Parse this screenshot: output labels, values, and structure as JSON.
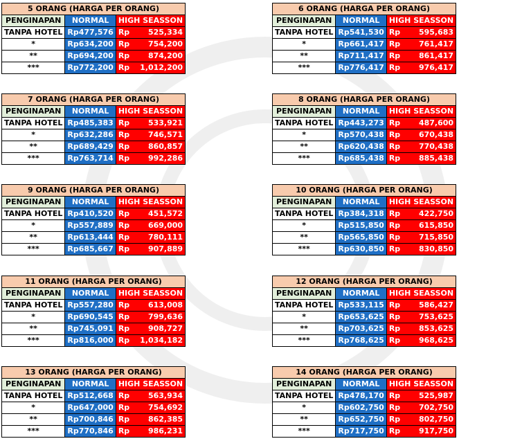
{
  "headers": {
    "accommodation": "PENGINAPAN",
    "normal": "NORMAL",
    "high": "HIGH SEASSON"
  },
  "currency": "Rp",
  "colors": {
    "title_bg": "#f8cbad",
    "label_header_bg": "#e2efda",
    "normal_bg": "#1f6fc5",
    "high_bg": "#ff0000"
  },
  "tables": [
    {
      "title": "5 ORANG (HARGA PER ORANG)",
      "rows": [
        {
          "label": "TANPA HOTEL",
          "normal": "477,576",
          "high": "525,334"
        },
        {
          "label": "*",
          "normal": "634,200",
          "high": "754,200"
        },
        {
          "label": "**",
          "normal": "694,200",
          "high": "874,200"
        },
        {
          "label": "***",
          "normal": "772,200",
          "high": "1,012,200"
        }
      ]
    },
    {
      "title": "6 ORANG (HARGA PER ORANG)",
      "rows": [
        {
          "label": "TANPA HOTEL",
          "normal": "541,530",
          "high": "595,683"
        },
        {
          "label": "*",
          "normal": "661,417",
          "high": "761,417"
        },
        {
          "label": "**",
          "normal": "711,417",
          "high": "861,417"
        },
        {
          "label": "***",
          "normal": "776,417",
          "high": "976,417"
        }
      ]
    },
    {
      "title": "7 ORANG (HARGA PER ORANG)",
      "rows": [
        {
          "label": "TANPA HOTEL",
          "normal": "485,383",
          "high": "533,921"
        },
        {
          "label": "*",
          "normal": "632,286",
          "high": "746,571"
        },
        {
          "label": "**",
          "normal": "689,429",
          "high": "860,857"
        },
        {
          "label": "***",
          "normal": "763,714",
          "high": "992,286"
        }
      ]
    },
    {
      "title": "8 ORANG (HARGA PER ORANG)",
      "rows": [
        {
          "label": "TANPA HOTEL",
          "normal": "443,273",
          "high": "487,600"
        },
        {
          "label": "*",
          "normal": "570,438",
          "high": "670,438"
        },
        {
          "label": "**",
          "normal": "620,438",
          "high": "770,438"
        },
        {
          "label": "***",
          "normal": "685,438",
          "high": "885,438"
        }
      ]
    },
    {
      "title": "9 ORANG (HARGA PER ORANG)",
      "rows": [
        {
          "label": "TANPA HOTEL",
          "normal": "410,520",
          "high": "451,572"
        },
        {
          "label": "*",
          "normal": "557,889",
          "high": "669,000"
        },
        {
          "label": "**",
          "normal": "613,444",
          "high": "780,111"
        },
        {
          "label": "***",
          "normal": "685,667",
          "high": "907,889"
        }
      ]
    },
    {
      "title": "10 ORANG (HARGA PER ORANG)",
      "rows": [
        {
          "label": "TANPA HOTEL",
          "normal": "384,318",
          "high": "422,750"
        },
        {
          "label": "*",
          "normal": "515,850",
          "high": "615,850"
        },
        {
          "label": "**",
          "normal": "565,850",
          "high": "715,850"
        },
        {
          "label": "***",
          "normal": "630,850",
          "high": "830,850"
        }
      ]
    },
    {
      "title": "11 ORANG (HARGA PER ORANG)",
      "rows": [
        {
          "label": "TANPA HOTEL",
          "normal": "557,280",
          "high": "613,008"
        },
        {
          "label": "*",
          "normal": "690,545",
          "high": "799,636"
        },
        {
          "label": "**",
          "normal": "745,091",
          "high": "908,727"
        },
        {
          "label": "***",
          "normal": "816,000",
          "high": "1,034,182"
        }
      ]
    },
    {
      "title": "12 ORANG (HARGA PER ORANG)",
      "rows": [
        {
          "label": "TANPA HOTEL",
          "normal": "533,115",
          "high": "586,427"
        },
        {
          "label": "*",
          "normal": "653,625",
          "high": "753,625"
        },
        {
          "label": "**",
          "normal": "703,625",
          "high": "853,625"
        },
        {
          "label": "***",
          "normal": "768,625",
          "high": "968,625"
        }
      ]
    },
    {
      "title": "13 ORANG (HARGA PER ORANG)",
      "rows": [
        {
          "label": "TANPA HOTEL",
          "normal": "512,668",
          "high": "563,934"
        },
        {
          "label": "*",
          "normal": "647,000",
          "high": "754,692"
        },
        {
          "label": "**",
          "normal": "700,846",
          "high": "862,385"
        },
        {
          "label": "***",
          "normal": "770,846",
          "high": "986,231"
        }
      ]
    },
    {
      "title": "14 ORANG (HARGA PER ORANG)",
      "rows": [
        {
          "label": "TANPA HOTEL",
          "normal": "478,170",
          "high": "525,987"
        },
        {
          "label": "*",
          "normal": "602,750",
          "high": "702,750"
        },
        {
          "label": "**",
          "normal": "652,750",
          "high": "802,750"
        },
        {
          "label": "***",
          "normal": "717,750",
          "high": "917,750"
        }
      ]
    }
  ]
}
